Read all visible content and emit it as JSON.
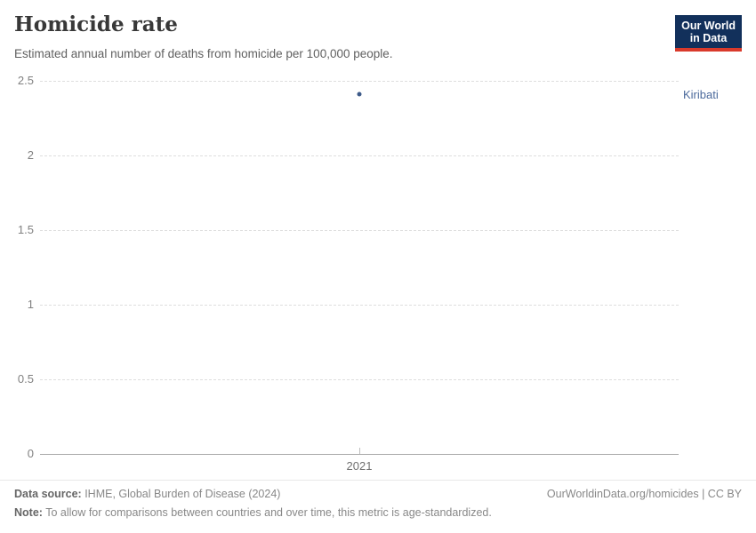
{
  "header": {
    "title": "Homicide rate",
    "subtitle": "Estimated annual number of deaths from homicide per 100,000 people.",
    "logo": {
      "line1": "Our World",
      "line2": "in Data",
      "bg_color": "#12305b",
      "accent_color": "#d93a2b"
    }
  },
  "chart_data": {
    "type": "scatter",
    "title": "Homicide rate",
    "subtitle": "Estimated annual number of deaths from homicide per 100,000 people.",
    "x": [
      2021
    ],
    "series": [
      {
        "name": "Kiribati",
        "values": [
          2.41
        ],
        "color": "#3d5a89",
        "label_color": "#4c6a9c"
      }
    ],
    "xlabel": "",
    "ylabel": "",
    "ylim": [
      0,
      2.5
    ],
    "yticks": [
      0,
      0.5,
      1,
      1.5,
      2,
      2.5
    ],
    "ytick_labels": [
      "0",
      "0.5",
      "1",
      "1.5",
      "2",
      "2.5"
    ],
    "xtick_labels": [
      "2021"
    ],
    "grid": "horizontal-dashed",
    "legend_position": "right-inline-label"
  },
  "footer": {
    "datasource_label": "Data source:",
    "datasource_text": " IHME, Global Burden of Disease (2024)",
    "note_label": "Note:",
    "note_text": " To allow for comparisons between countries and over time, this metric is age-standardized.",
    "link_text": "OurWorldinData.org/homicides | CC BY"
  }
}
